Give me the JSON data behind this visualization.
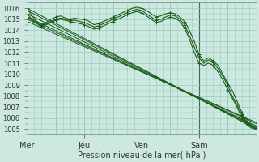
{
  "xlabel": "Pression niveau de la mer( hPa )",
  "ylim": [
    1004.5,
    1016.5
  ],
  "yticks": [
    1005,
    1006,
    1007,
    1008,
    1009,
    1010,
    1011,
    1012,
    1013,
    1014,
    1015,
    1016
  ],
  "day_labels": [
    "Mer",
    "Jeu",
    "Ven",
    "Sam"
  ],
  "day_positions": [
    0,
    48,
    96,
    144
  ],
  "xlim": [
    0,
    192
  ],
  "bg_color": "#cce8e0",
  "grid_color": "#99ccbb",
  "line_color": "#1a5c1a",
  "total_hours": 192,
  "straight_lines": [
    [
      1016.0,
      1005.0
    ],
    [
      1015.8,
      1005.1
    ],
    [
      1015.5,
      1005.2
    ],
    [
      1015.2,
      1005.3
    ],
    [
      1015.0,
      1005.5
    ],
    [
      1014.8,
      1005.6
    ]
  ],
  "curved_line1_x": [
    0,
    4,
    8,
    12,
    16,
    20,
    24,
    28,
    32,
    36,
    40,
    44,
    48,
    52,
    56,
    60,
    64,
    68,
    72,
    76,
    80,
    84,
    88,
    92,
    96,
    100,
    104,
    108,
    112,
    116,
    120,
    124,
    128,
    132,
    136,
    140,
    144,
    148,
    152,
    156,
    160,
    164,
    168,
    172,
    176,
    180,
    184,
    188,
    192
  ],
  "curved_line1_y": [
    1016.0,
    1015.3,
    1014.8,
    1014.5,
    1014.7,
    1015.0,
    1015.2,
    1015.3,
    1015.1,
    1015.0,
    1015.1,
    1015.0,
    1015.0,
    1014.8,
    1014.5,
    1014.6,
    1014.8,
    1015.0,
    1015.2,
    1015.4,
    1015.6,
    1015.8,
    1016.0,
    1016.1,
    1016.0,
    1015.8,
    1015.5,
    1015.2,
    1015.3,
    1015.5,
    1015.6,
    1015.5,
    1015.2,
    1014.8,
    1014.0,
    1013.0,
    1011.8,
    1011.2,
    1011.5,
    1011.2,
    1010.8,
    1010.0,
    1009.2,
    1008.5,
    1007.5,
    1006.5,
    1005.8,
    1005.3,
    1005.1
  ],
  "curved_line2_x": [
    0,
    4,
    8,
    12,
    16,
    20,
    24,
    28,
    32,
    36,
    40,
    44,
    48,
    52,
    56,
    60,
    64,
    68,
    72,
    76,
    80,
    84,
    88,
    92,
    96,
    100,
    104,
    108,
    112,
    116,
    120,
    124,
    128,
    132,
    136,
    140,
    144,
    148,
    152,
    156,
    160,
    164,
    168,
    172,
    176,
    180,
    184,
    188,
    192
  ],
  "curved_line2_y": [
    1015.5,
    1015.0,
    1014.7,
    1014.4,
    1014.6,
    1014.8,
    1015.0,
    1015.1,
    1015.0,
    1014.9,
    1014.9,
    1014.8,
    1014.7,
    1014.5,
    1014.3,
    1014.4,
    1014.6,
    1014.8,
    1015.0,
    1015.2,
    1015.4,
    1015.6,
    1015.8,
    1015.9,
    1015.8,
    1015.5,
    1015.2,
    1014.9,
    1015.0,
    1015.2,
    1015.4,
    1015.3,
    1015.0,
    1014.5,
    1013.5,
    1012.5,
    1011.5,
    1011.0,
    1011.3,
    1011.1,
    1010.5,
    1009.8,
    1009.0,
    1008.0,
    1007.2,
    1006.3,
    1005.6,
    1005.2,
    1005.0
  ],
  "curved_line3_x": [
    0,
    4,
    8,
    12,
    16,
    20,
    24,
    28,
    32,
    36,
    40,
    44,
    48,
    52,
    56,
    60,
    64,
    68,
    72,
    76,
    80,
    84,
    88,
    92,
    96,
    100,
    104,
    108,
    112,
    116,
    120,
    124,
    128,
    132,
    136,
    140,
    144,
    148,
    152,
    156,
    160,
    164,
    168,
    172,
    176,
    180,
    184,
    188,
    192
  ],
  "curved_line3_y": [
    1015.2,
    1014.9,
    1014.6,
    1014.3,
    1014.5,
    1014.7,
    1014.9,
    1015.0,
    1014.9,
    1014.8,
    1014.7,
    1014.6,
    1014.5,
    1014.3,
    1014.1,
    1014.2,
    1014.4,
    1014.6,
    1014.8,
    1015.0,
    1015.2,
    1015.4,
    1015.6,
    1015.7,
    1015.6,
    1015.3,
    1015.0,
    1014.7,
    1014.8,
    1015.0,
    1015.2,
    1015.1,
    1014.8,
    1014.2,
    1013.2,
    1012.0,
    1011.0,
    1010.8,
    1011.0,
    1010.8,
    1010.2,
    1009.5,
    1008.6,
    1007.8,
    1007.0,
    1006.0,
    1005.4,
    1005.1,
    1005.0
  ]
}
